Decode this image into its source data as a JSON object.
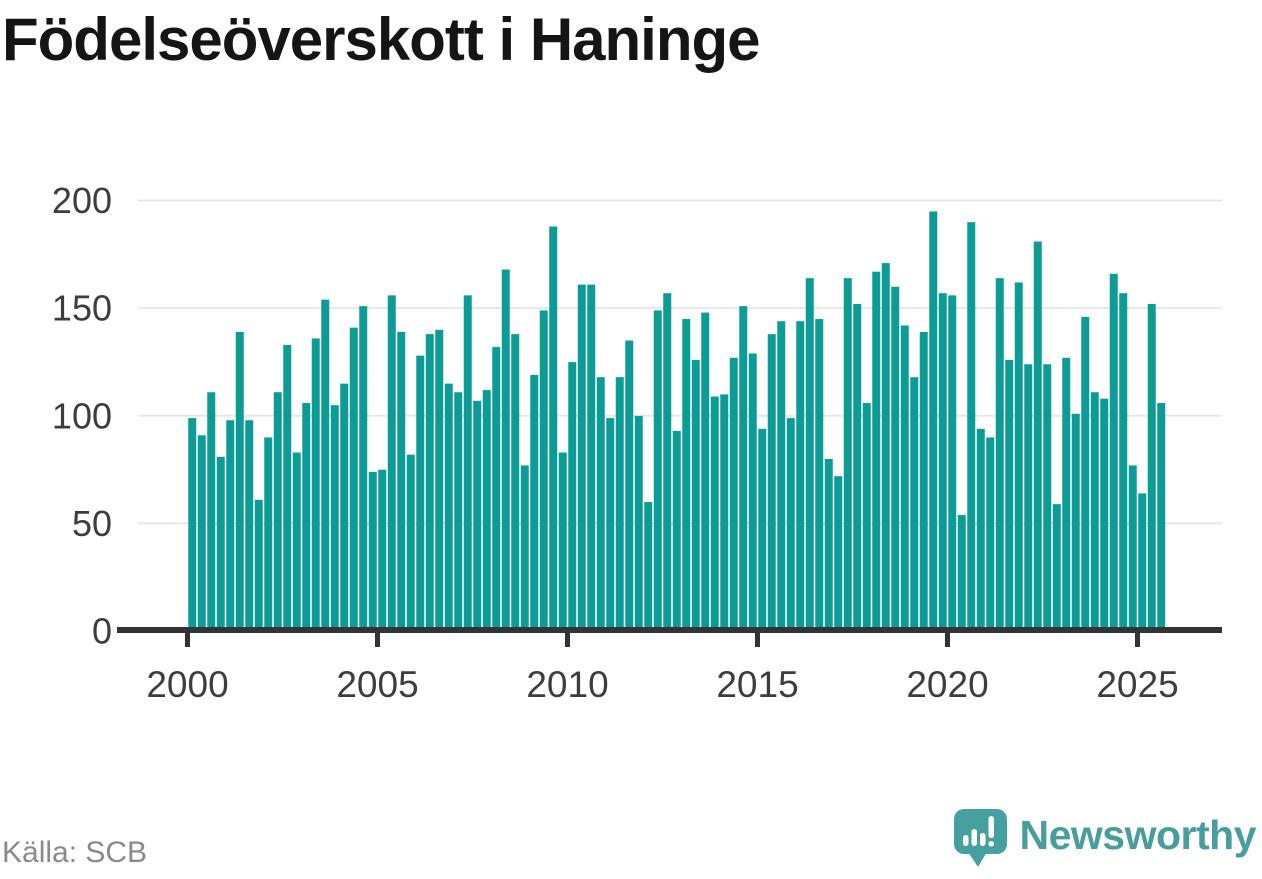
{
  "title": "Födelseöverskott i Haninge",
  "source": "Källa: SCB",
  "branding": {
    "name": "Newsworthy",
    "logo_icon": "newsworthy-speech-bubble-bar-chart-icon",
    "icon_color": "#47a0a0",
    "text_color": "#4a9d9d"
  },
  "colors": {
    "bar": "#0d9c95",
    "grid": "#e7e7e7",
    "axis": "#333333",
    "tick_label": "#3d3d3d",
    "title_text": "#151515",
    "source_text": "#8a8a8a"
  },
  "chart_data": {
    "type": "bar",
    "title": "Födelseöverskott i Haninge",
    "xlabel": "",
    "ylabel": "",
    "x_unit": "quarter",
    "start": "2000-Q1",
    "end": "2025-Q3",
    "quarters_per_year": 4,
    "start_year": 2000,
    "ylim": [
      0,
      200
    ],
    "grid": true,
    "legend": "none",
    "y_ticks": [
      0,
      50,
      100,
      150,
      200
    ],
    "x_tick_labels": [
      "2000",
      "2005",
      "2010",
      "2015",
      "2020",
      "2025"
    ],
    "series": [
      {
        "name": "Födelseöverskott",
        "values": [
          98,
          90,
          110,
          80,
          97,
          138,
          97,
          60,
          89,
          110,
          132,
          82,
          105,
          135,
          153,
          104,
          114,
          140,
          150,
          73,
          74,
          155,
          138,
          81,
          127,
          137,
          139,
          114,
          110,
          155,
          106,
          111,
          131,
          167,
          137,
          76,
          118,
          148,
          187,
          82,
          124,
          160,
          160,
          117,
          98,
          117,
          134,
          99,
          59,
          148,
          156,
          92,
          144,
          125,
          147,
          108,
          109,
          126,
          150,
          128,
          93,
          137,
          143,
          98,
          143,
          163,
          144,
          79,
          71,
          163,
          151,
          105,
          166,
          170,
          159,
          141,
          117,
          138,
          194,
          156,
          155,
          53,
          189,
          93,
          89,
          163,
          125,
          161,
          123,
          180,
          123,
          58,
          126,
          100,
          145,
          110,
          107,
          165,
          156,
          76,
          63,
          151,
          105
        ]
      }
    ]
  }
}
